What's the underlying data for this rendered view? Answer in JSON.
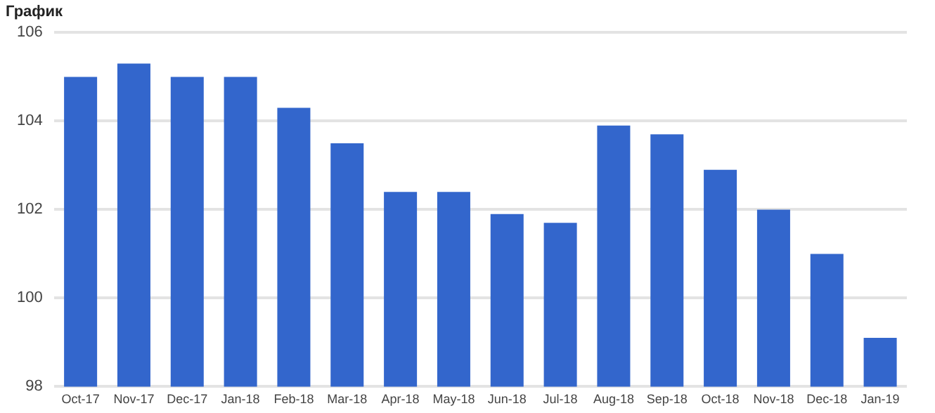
{
  "chart_data": {
    "type": "bar",
    "title": "График",
    "categories": [
      "Oct-17",
      "Nov-17",
      "Dec-17",
      "Jan-18",
      "Feb-18",
      "Mar-18",
      "Apr-18",
      "May-18",
      "Jun-18",
      "Jul-18",
      "Aug-18",
      "Sep-18",
      "Oct-18",
      "Nov-18",
      "Dec-18",
      "Jan-19"
    ],
    "values": [
      105.0,
      105.3,
      105.0,
      105.0,
      104.3,
      103.5,
      102.4,
      102.4,
      101.9,
      101.7,
      103.9,
      103.7,
      102.9,
      102.0,
      101.0,
      99.1
    ],
    "color": "#3366cc",
    "ylim": [
      98,
      106
    ],
    "yticks": [
      98,
      100,
      102,
      104,
      106
    ],
    "grid": "y"
  }
}
